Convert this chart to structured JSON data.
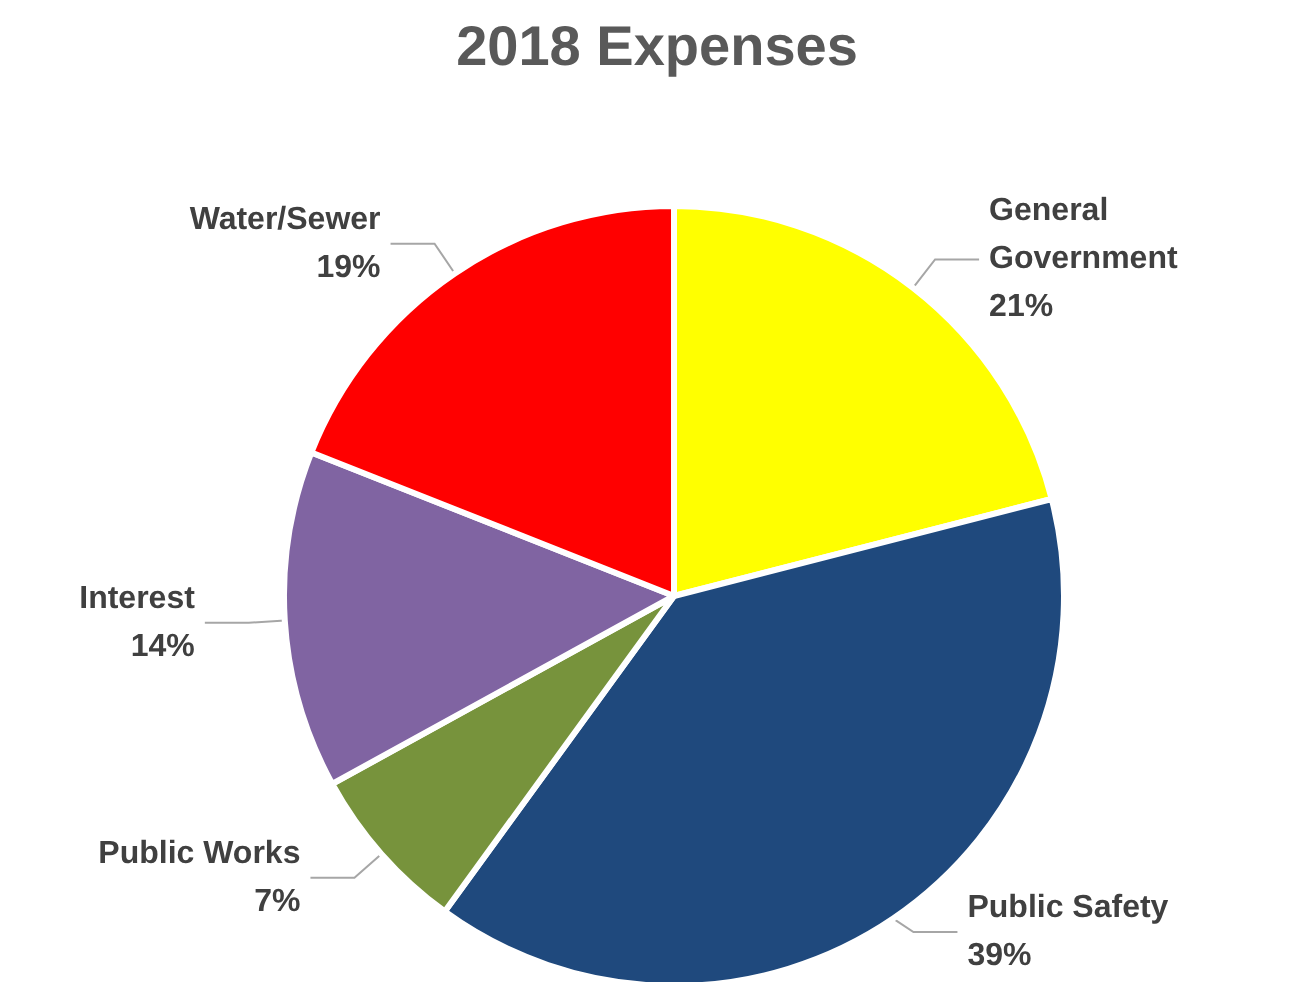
{
  "chart_data": {
    "type": "pie",
    "title": "2018 Expenses",
    "categories": [
      "General Government",
      "Public Safety",
      "Public Works",
      "Interest",
      "Water/Sewer"
    ],
    "values": [
      21,
      39,
      7,
      14,
      19
    ],
    "value_labels": [
      "21%",
      "39%",
      "7%",
      "14%",
      "19%"
    ],
    "colors": [
      "#ffff00",
      "#1f497d",
      "#77933c",
      "#8064a2",
      "#ff0000"
    ],
    "legend": false
  }
}
